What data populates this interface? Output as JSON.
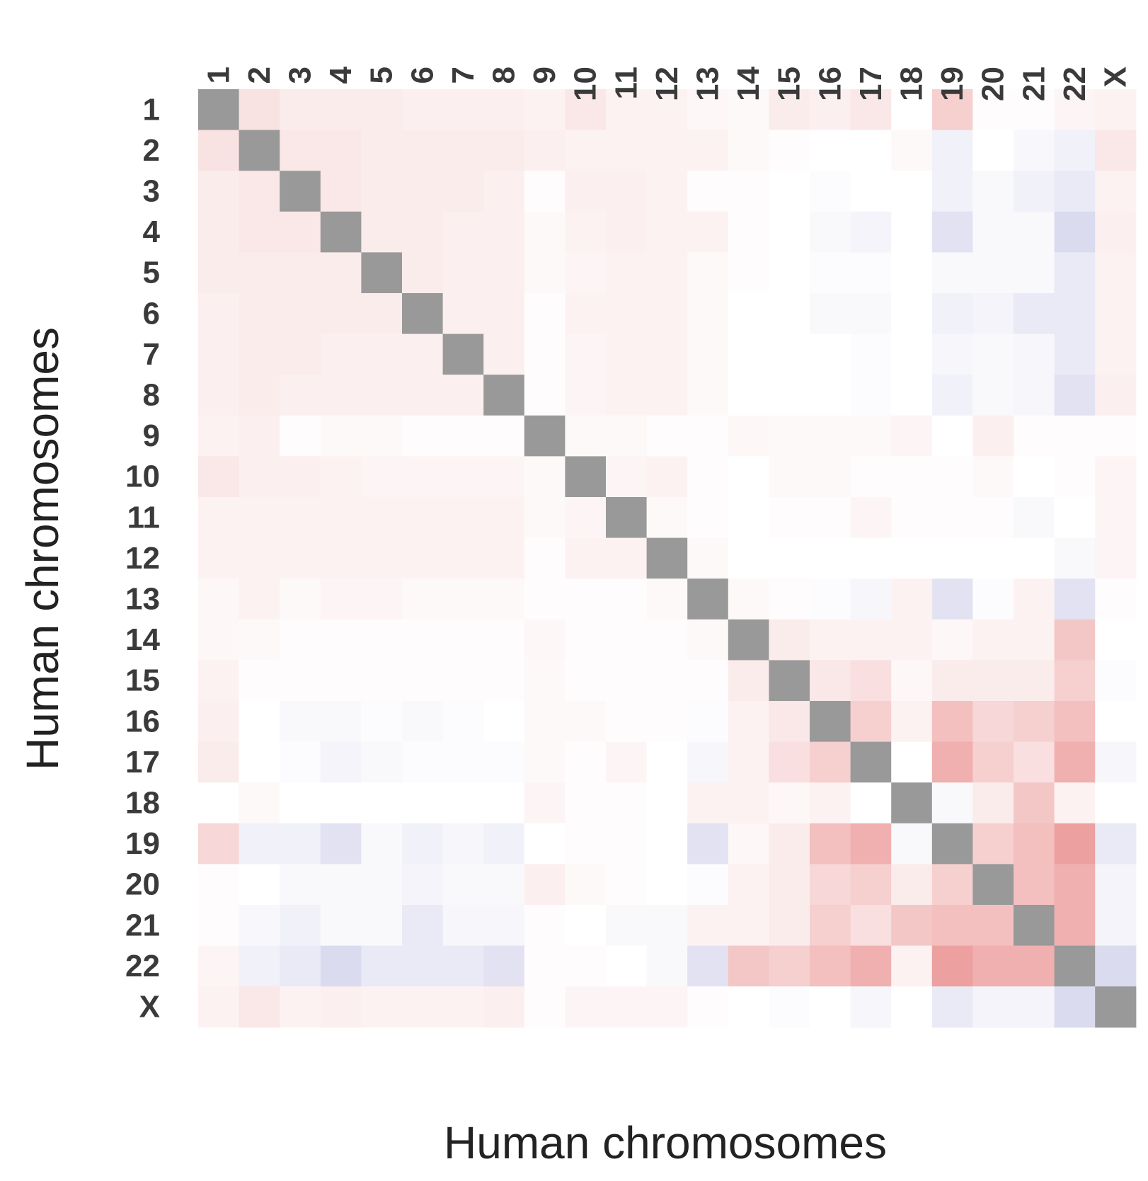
{
  "chart_data": {
    "type": "heatmap",
    "title": "",
    "xlabel": "Human chromosomes",
    "ylabel": "Human chromosomes",
    "categories": [
      "1",
      "2",
      "3",
      "4",
      "5",
      "6",
      "7",
      "8",
      "9",
      "10",
      "11",
      "12",
      "13",
      "14",
      "15",
      "16",
      "17",
      "18",
      "19",
      "20",
      "21",
      "22",
      "X"
    ],
    "value_range": [
      -1,
      1
    ],
    "diagonal": "not shown (grey)",
    "colors": {
      "positive": "#e06060",
      "negative": "#7070c0",
      "neutral": "#ffffff",
      "diagonal": "#999999"
    },
    "values": [
      [
        null,
        0.18,
        0.12,
        0.12,
        0.12,
        0.1,
        0.1,
        0.1,
        0.08,
        0.15,
        0.08,
        0.08,
        0.05,
        0.04,
        0.12,
        0.1,
        0.15,
        0.0,
        0.3,
        0.02,
        0.02,
        0.06,
        0.08
      ],
      [
        0.18,
        null,
        0.15,
        0.15,
        0.12,
        0.12,
        0.12,
        0.12,
        0.1,
        0.08,
        0.08,
        0.08,
        0.08,
        0.04,
        0.02,
        0.0,
        0.0,
        0.04,
        -0.1,
        0.0,
        -0.05,
        -0.1,
        0.15
      ],
      [
        0.12,
        0.15,
        null,
        0.15,
        0.12,
        0.12,
        0.12,
        0.1,
        0.02,
        0.1,
        0.1,
        0.08,
        0.02,
        0.02,
        0.0,
        -0.02,
        0.0,
        0.0,
        -0.1,
        -0.04,
        -0.1,
        -0.15,
        0.08
      ],
      [
        0.12,
        0.15,
        0.15,
        null,
        0.12,
        0.12,
        0.1,
        0.1,
        0.04,
        0.08,
        0.1,
        0.08,
        0.08,
        0.02,
        0.0,
        -0.04,
        -0.08,
        0.0,
        -0.2,
        -0.04,
        -0.04,
        -0.25,
        0.1
      ],
      [
        0.12,
        0.12,
        0.12,
        0.12,
        null,
        0.12,
        0.1,
        0.1,
        0.04,
        0.06,
        0.08,
        0.08,
        0.04,
        0.02,
        0.0,
        -0.02,
        -0.02,
        0.0,
        -0.04,
        -0.04,
        -0.04,
        -0.15,
        0.08
      ],
      [
        0.1,
        0.12,
        0.12,
        0.12,
        0.12,
        null,
        0.1,
        0.1,
        0.02,
        0.08,
        0.08,
        0.08,
        0.04,
        0.0,
        0.0,
        -0.04,
        -0.04,
        0.0,
        -0.1,
        -0.08,
        -0.15,
        -0.15,
        0.08
      ],
      [
        0.1,
        0.12,
        0.12,
        0.1,
        0.1,
        0.1,
        null,
        0.1,
        0.02,
        0.06,
        0.08,
        0.08,
        0.04,
        0.0,
        0.0,
        0.0,
        -0.02,
        0.0,
        -0.06,
        -0.04,
        -0.06,
        -0.15,
        0.08
      ],
      [
        0.1,
        0.12,
        0.1,
        0.1,
        0.1,
        0.1,
        0.1,
        null,
        0.02,
        0.06,
        0.08,
        0.08,
        0.04,
        0.0,
        0.0,
        0.0,
        -0.02,
        0.0,
        -0.1,
        -0.04,
        -0.06,
        -0.2,
        0.1
      ],
      [
        0.08,
        0.1,
        0.02,
        0.04,
        0.04,
        0.02,
        0.02,
        0.02,
        null,
        0.04,
        0.04,
        0.02,
        0.02,
        0.05,
        0.04,
        0.04,
        0.04,
        0.06,
        0.0,
        0.1,
        0.02,
        0.02,
        0.02
      ],
      [
        0.15,
        0.1,
        0.1,
        0.08,
        0.06,
        0.06,
        0.06,
        0.06,
        0.04,
        null,
        0.06,
        0.08,
        0.02,
        0.0,
        0.04,
        0.04,
        0.02,
        0.02,
        0.02,
        0.04,
        0.0,
        0.02,
        0.06
      ],
      [
        0.08,
        0.08,
        0.08,
        0.08,
        0.08,
        0.08,
        0.08,
        0.08,
        0.04,
        0.06,
        null,
        0.04,
        0.02,
        0.0,
        0.02,
        0.02,
        0.06,
        0.02,
        0.02,
        0.02,
        -0.04,
        0.0,
        0.06
      ],
      [
        0.08,
        0.08,
        0.08,
        0.08,
        0.08,
        0.08,
        0.08,
        0.08,
        0.02,
        0.08,
        0.08,
        null,
        0.04,
        0.0,
        0.0,
        0.0,
        0.0,
        0.0,
        0.0,
        0.0,
        0.0,
        -0.04,
        0.06
      ],
      [
        0.05,
        0.08,
        0.04,
        0.06,
        0.06,
        0.04,
        0.04,
        0.04,
        0.02,
        0.02,
        0.02,
        0.04,
        null,
        0.04,
        0.02,
        -0.02,
        -0.06,
        0.08,
        -0.2,
        -0.02,
        0.08,
        -0.2,
        0.02
      ],
      [
        0.05,
        0.04,
        0.02,
        0.02,
        0.02,
        0.02,
        0.02,
        0.02,
        0.05,
        0.02,
        0.02,
        0.02,
        0.04,
        null,
        0.12,
        0.08,
        0.08,
        0.08,
        0.05,
        0.08,
        0.08,
        0.35,
        0.0
      ],
      [
        0.08,
        0.02,
        0.02,
        0.02,
        0.02,
        0.02,
        0.02,
        0.02,
        0.04,
        0.02,
        0.02,
        0.02,
        0.02,
        0.12,
        null,
        0.15,
        0.2,
        0.05,
        0.12,
        0.12,
        0.12,
        0.3,
        -0.02
      ],
      [
        0.1,
        0.0,
        -0.04,
        -0.04,
        -0.02,
        -0.04,
        -0.02,
        0.0,
        0.04,
        0.04,
        0.02,
        0.02,
        -0.02,
        0.08,
        0.15,
        null,
        0.3,
        0.08,
        0.4,
        0.25,
        0.3,
        0.4,
        0.0
      ],
      [
        0.12,
        0.0,
        -0.02,
        -0.08,
        -0.04,
        -0.02,
        -0.02,
        -0.02,
        0.04,
        0.02,
        0.06,
        0.0,
        -0.06,
        0.08,
        0.2,
        0.3,
        null,
        0.0,
        0.5,
        0.3,
        0.2,
        0.5,
        -0.06
      ],
      [
        0.0,
        0.04,
        0.0,
        0.0,
        0.0,
        0.0,
        0.0,
        0.0,
        0.06,
        0.02,
        0.02,
        0.0,
        0.08,
        0.08,
        0.05,
        0.08,
        0.0,
        null,
        -0.04,
        0.12,
        0.35,
        0.08,
        0.0
      ],
      [
        0.25,
        -0.1,
        -0.1,
        -0.2,
        -0.04,
        -0.1,
        -0.06,
        -0.1,
        0.0,
        0.02,
        0.02,
        0.0,
        -0.2,
        0.05,
        0.12,
        0.4,
        0.5,
        -0.04,
        null,
        0.3,
        0.4,
        0.6,
        -0.15
      ],
      [
        0.02,
        0.0,
        -0.04,
        -0.04,
        -0.04,
        -0.08,
        -0.04,
        -0.04,
        0.1,
        0.04,
        0.02,
        0.0,
        -0.02,
        0.08,
        0.12,
        0.25,
        0.3,
        0.12,
        0.3,
        null,
        0.4,
        0.5,
        -0.08
      ],
      [
        0.02,
        -0.05,
        -0.1,
        -0.04,
        -0.04,
        -0.15,
        -0.06,
        -0.06,
        0.02,
        0.0,
        -0.04,
        -0.04,
        0.08,
        0.08,
        0.12,
        0.3,
        0.2,
        0.35,
        0.4,
        0.4,
        null,
        0.5,
        -0.08
      ],
      [
        0.06,
        -0.1,
        -0.15,
        -0.25,
        -0.15,
        -0.15,
        -0.15,
        -0.2,
        0.02,
        0.02,
        0.0,
        -0.04,
        -0.2,
        0.35,
        0.3,
        0.4,
        0.5,
        0.08,
        0.6,
        0.5,
        0.5,
        null,
        -0.25
      ],
      [
        0.08,
        0.15,
        0.08,
        0.1,
        0.08,
        0.08,
        0.08,
        0.1,
        0.02,
        0.06,
        0.06,
        0.06,
        0.02,
        0.0,
        -0.02,
        0.0,
        -0.06,
        0.0,
        -0.15,
        -0.08,
        -0.08,
        -0.25,
        null
      ]
    ]
  }
}
